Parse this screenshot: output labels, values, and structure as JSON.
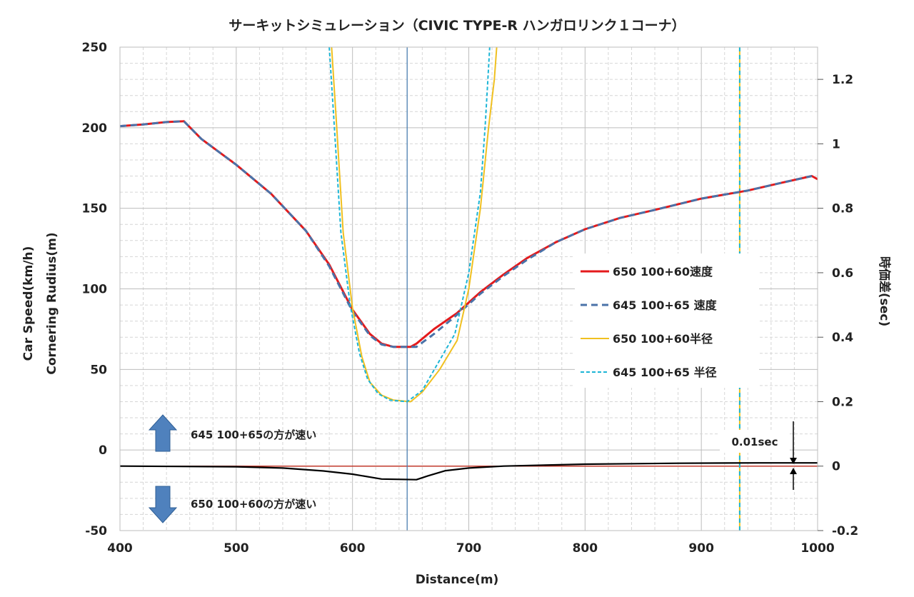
{
  "chart_data": {
    "type": "line",
    "title": "サーキットシミュレーション（CIVIC TYPE-R ハンガロリンク１コーナ）",
    "xlabel": "Distance(m)",
    "ylabel_lines": [
      "Car Speed(km/h)",
      "Cornering Rudius(m)"
    ],
    "y2label": "時価差(sec)",
    "xlim": [
      400,
      1000
    ],
    "ylim": [
      -50,
      250
    ],
    "y2lim": [
      -0.2,
      1.3
    ],
    "x_ticks": [
      "400",
      "500",
      "600",
      "700",
      "800",
      "900",
      "1000"
    ],
    "y_ticks": [
      "-50",
      "0",
      "50",
      "100",
      "150",
      "200",
      "250"
    ],
    "y2_ticks": [
      "-0.2",
      "0",
      "0.2",
      "0.4",
      "0.6",
      "0.8",
      "1",
      "1.2"
    ],
    "grid": true,
    "legend_position": "right-center",
    "colors": {
      "speed_650": "#e41a1c",
      "speed_645": "#4a72a8",
      "radius_650": "#f0c020",
      "radius_645": "#1cb5d6",
      "time_diff": "#000000",
      "zero_ref": "#c0392b",
      "vline_apex": "#4a7eb0",
      "vline_end": "#1cb5d6",
      "arrow_fill": "#4f81bd",
      "grid": "#d6d6d6"
    },
    "series": [
      {
        "name": "650 100+60速度",
        "axis": "left",
        "style": "solid",
        "x": [
          400,
          420,
          440,
          455,
          470,
          500,
          530,
          560,
          580,
          600,
          615,
          625,
          635,
          650,
          655,
          670,
          690,
          710,
          730,
          750,
          775,
          800,
          830,
          860,
          900,
          940,
          970,
          995,
          1000
        ],
        "y": [
          201,
          202,
          203.5,
          204,
          193,
          177,
          159,
          136,
          115,
          87,
          72,
          66,
          64,
          64,
          66,
          75,
          85,
          98,
          109,
          119,
          129,
          137,
          144,
          149,
          156,
          161,
          166,
          170,
          168
        ]
      },
      {
        "name": "645 100+65 速度",
        "axis": "left",
        "style": "dashed",
        "x": [
          400,
          420,
          440,
          455,
          470,
          500,
          530,
          560,
          580,
          600,
          615,
          625,
          635,
          655,
          670,
          690,
          710,
          730,
          750,
          775,
          800,
          830,
          860,
          900,
          940,
          970,
          995
        ],
        "y": [
          201,
          202,
          203.5,
          204,
          193,
          177,
          159,
          136,
          114,
          86,
          71,
          65.5,
          64,
          64,
          72,
          84,
          97,
          108,
          118,
          129,
          137,
          144,
          149,
          156,
          161,
          166,
          170
        ]
      },
      {
        "name": "650 100+60半径",
        "axis": "left",
        "style": "solid",
        "x": [
          582,
          586,
          592,
          600,
          608,
          615,
          625,
          635,
          650,
          660,
          675,
          690,
          700,
          710,
          717,
          722,
          724
        ],
        "y": [
          250,
          205,
          135,
          88,
          58,
          42,
          34,
          31,
          30,
          36,
          50,
          68,
          100,
          150,
          200,
          230,
          250
        ]
      },
      {
        "name": "645 100+65 半径",
        "axis": "left",
        "style": "dashed",
        "x": [
          580,
          584,
          590,
          598,
          606,
          613,
          622,
          632,
          647,
          660,
          672,
          688,
          700,
          710,
          714,
          716,
          718
        ],
        "y": [
          250,
          205,
          135,
          90,
          60,
          44,
          35,
          31,
          30,
          37,
          52,
          72,
          110,
          160,
          200,
          225,
          250
        ]
      },
      {
        "axis": "right",
        "style": "solid",
        "x": [
          400,
          500,
          540,
          575,
          600,
          625,
          655,
          665,
          680,
          700,
          730,
          800,
          880,
          950,
          1000
        ],
        "y": [
          0,
          -0.002,
          -0.006,
          -0.015,
          -0.025,
          -0.04,
          -0.042,
          -0.03,
          -0.014,
          -0.006,
          0,
          0.006,
          0.009,
          0.01,
          0.01
        ]
      }
    ],
    "reference_lines": [
      {
        "orientation": "horizontal",
        "axis": "right",
        "y": 0
      },
      {
        "orientation": "vertical",
        "x": 647
      },
      {
        "orientation": "vertical",
        "x": 933
      }
    ],
    "annotations": {
      "upper_arrow_text": "645 100+65の方が速い",
      "lower_arrow_text": "650 100+60の方が速い",
      "scale_label": "0.01sec"
    }
  }
}
